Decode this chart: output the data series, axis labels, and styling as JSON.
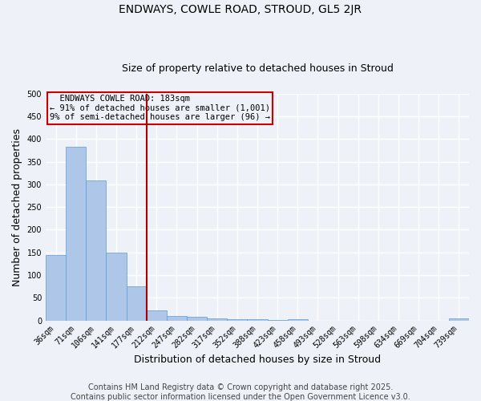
{
  "title1": "ENDWAYS, COWLE ROAD, STROUD, GL5 2JR",
  "title2": "Size of property relative to detached houses in Stroud",
  "xlabel": "Distribution of detached houses by size in Stroud",
  "ylabel": "Number of detached properties",
  "categories": [
    "36sqm",
    "71sqm",
    "106sqm",
    "141sqm",
    "177sqm",
    "212sqm",
    "247sqm",
    "282sqm",
    "317sqm",
    "352sqm",
    "388sqm",
    "423sqm",
    "458sqm",
    "493sqm",
    "528sqm",
    "563sqm",
    "598sqm",
    "634sqm",
    "669sqm",
    "704sqm",
    "739sqm"
  ],
  "values": [
    145,
    383,
    308,
    150,
    75,
    22,
    10,
    8,
    5,
    2,
    2,
    1,
    2,
    0,
    0,
    0,
    0,
    0,
    0,
    0,
    4
  ],
  "bar_color": "#aec6e8",
  "bar_edge_color": "#5b9bd5",
  "vline_x": 4.5,
  "vline_color": "#aa0000",
  "annotation_text": "  ENDWAYS COWLE ROAD: 183sqm\n← 91% of detached houses are smaller (1,001)\n9% of semi-detached houses are larger (96) →",
  "annotation_box_color": "#cc0000",
  "ylim": [
    0,
    500
  ],
  "yticks": [
    0,
    50,
    100,
    150,
    200,
    250,
    300,
    350,
    400,
    450,
    500
  ],
  "footer": "Contains HM Land Registry data © Crown copyright and database right 2025.\nContains public sector information licensed under the Open Government Licence v3.0.",
  "background_color": "#eef2f8",
  "grid_color": "#ffffff",
  "title1_fontsize": 10,
  "title2_fontsize": 9,
  "xlabel_fontsize": 9,
  "ylabel_fontsize": 9,
  "tick_fontsize": 7,
  "footer_fontsize": 7,
  "ann_fontsize": 7.5
}
